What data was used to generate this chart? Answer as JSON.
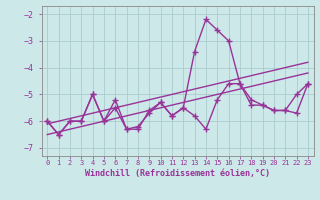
{
  "x_values": [
    0,
    1,
    2,
    3,
    4,
    5,
    6,
    7,
    8,
    9,
    10,
    11,
    12,
    13,
    14,
    15,
    16,
    17,
    18,
    19,
    20,
    21,
    22,
    23
  ],
  "line1_y": [
    -6.0,
    -6.5,
    -6.0,
    -6.0,
    -5.0,
    -6.0,
    -5.2,
    -6.3,
    -6.3,
    -5.6,
    -5.3,
    -5.8,
    -5.5,
    -3.4,
    -2.2,
    -2.6,
    -3.0,
    -4.6,
    -5.4,
    -5.4,
    -5.6,
    -5.6,
    -5.7,
    -4.6
  ],
  "line2_y": [
    -6.0,
    -6.5,
    -6.0,
    -6.0,
    -5.0,
    -6.0,
    -5.5,
    -6.3,
    -6.2,
    -5.7,
    -5.3,
    -5.8,
    -5.5,
    -5.8,
    -6.3,
    -5.2,
    -4.6,
    -4.6,
    -5.2,
    -5.4,
    -5.6,
    -5.6,
    -5.0,
    -4.6
  ],
  "trend1_y": [
    -6.1,
    -6.0,
    -5.9,
    -5.8,
    -5.7,
    -5.6,
    -5.5,
    -5.4,
    -5.3,
    -5.2,
    -5.1,
    -5.0,
    -4.9,
    -4.8,
    -4.7,
    -4.6,
    -4.5,
    -4.4,
    -4.3,
    -4.2,
    -4.1,
    -4.0,
    -3.9,
    -3.8
  ],
  "trend2_y": [
    -6.5,
    -6.4,
    -6.3,
    -6.2,
    -6.1,
    -6.0,
    -5.9,
    -5.8,
    -5.7,
    -5.6,
    -5.5,
    -5.4,
    -5.3,
    -5.2,
    -5.1,
    -5.0,
    -4.9,
    -4.8,
    -4.7,
    -4.6,
    -4.5,
    -4.4,
    -4.3,
    -4.2
  ],
  "bg_color": "#cce8e8",
  "grid_color": "#aacccc",
  "line_color": "#993399",
  "tick_color": "#993399",
  "xlabel": "Windchill (Refroidissement éolien,°C)",
  "xlabel_color": "#993399",
  "ylabel_color": "#993399",
  "ylim": [
    -7.3,
    -1.7
  ],
  "xlim": [
    -0.5,
    23.5
  ],
  "yticks": [
    -7,
    -6,
    -5,
    -4,
    -3,
    -2
  ],
  "xtick_labels": [
    "0",
    "1",
    "2",
    "3",
    "4",
    "5",
    "6",
    "7",
    "8",
    "9",
    "10",
    "11",
    "12",
    "13",
    "14",
    "15",
    "16",
    "17",
    "18",
    "19",
    "20",
    "21",
    "22",
    "23"
  ],
  "marker": "+",
  "markersize": 4,
  "linewidth": 1.0
}
